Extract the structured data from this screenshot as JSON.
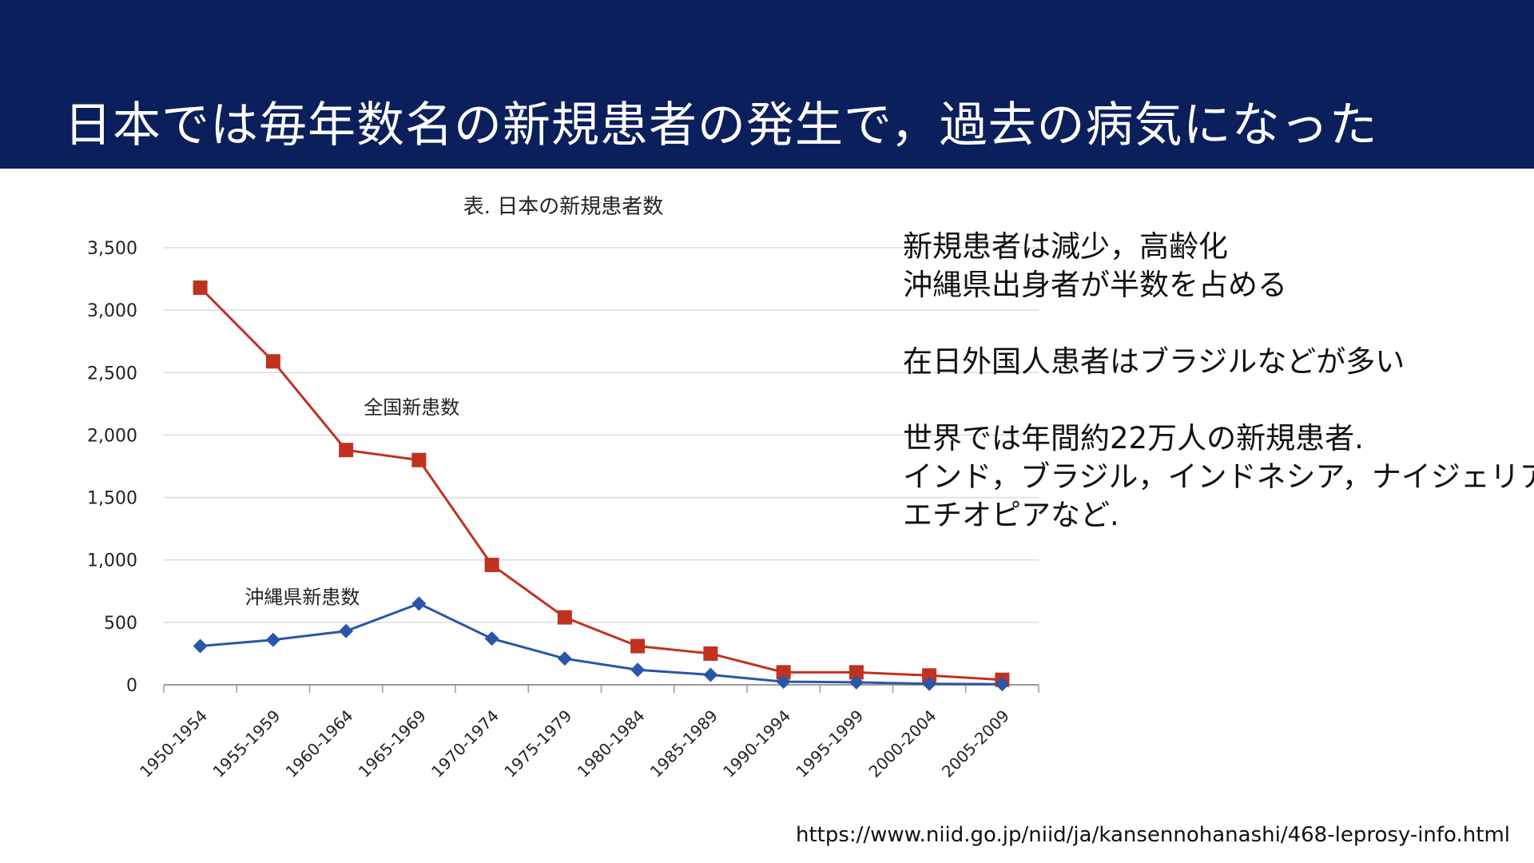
{
  "header": {
    "title": "日本では毎年数名の新規患者の発生で，過去の病気になった"
  },
  "notes": {
    "lines": [
      "新規患者は減少，高齢化",
      "沖縄県出身者が半数を占める",
      "",
      "在日外国人患者はブラジルなどが多い",
      "",
      "世界では年間約22万人の新規患者.",
      "インド，ブラジル，インドネシア，ナイジェリア，",
      "エチオピアなど."
    ]
  },
  "source": {
    "url": "https://www.niid.go.jp/niid/ja/kansennohanashi/468-leprosy-info.html"
  },
  "chart_data": {
    "type": "line",
    "title": "表. 日本の新規患者数",
    "xlabel": "",
    "ylabel": "",
    "ylim": [
      0,
      3500
    ],
    "yticks": [
      "0",
      "500",
      "1,000",
      "1,500",
      "2,000",
      "2,500",
      "3,000",
      "3,500"
    ],
    "grid": true,
    "legend": "inline labels",
    "categories": [
      "1950-1954",
      "1955-1959",
      "1960-1964",
      "1965-1969",
      "1970-1974",
      "1975-1979",
      "1980-1984",
      "1985-1989",
      "1990-1994",
      "1995-1999",
      "2000-2004",
      "2005-2009"
    ],
    "series": [
      {
        "name": "全国新患数",
        "color": "#c0321f",
        "marker": "square",
        "values": [
          3180,
          2590,
          1880,
          1800,
          960,
          540,
          310,
          250,
          100,
          100,
          75,
          40
        ]
      },
      {
        "name": "沖縄県新患数",
        "color": "#2a56a8",
        "marker": "diamond",
        "values": [
          310,
          360,
          430,
          650,
          370,
          210,
          120,
          80,
          25,
          20,
          8,
          5
        ]
      }
    ]
  }
}
